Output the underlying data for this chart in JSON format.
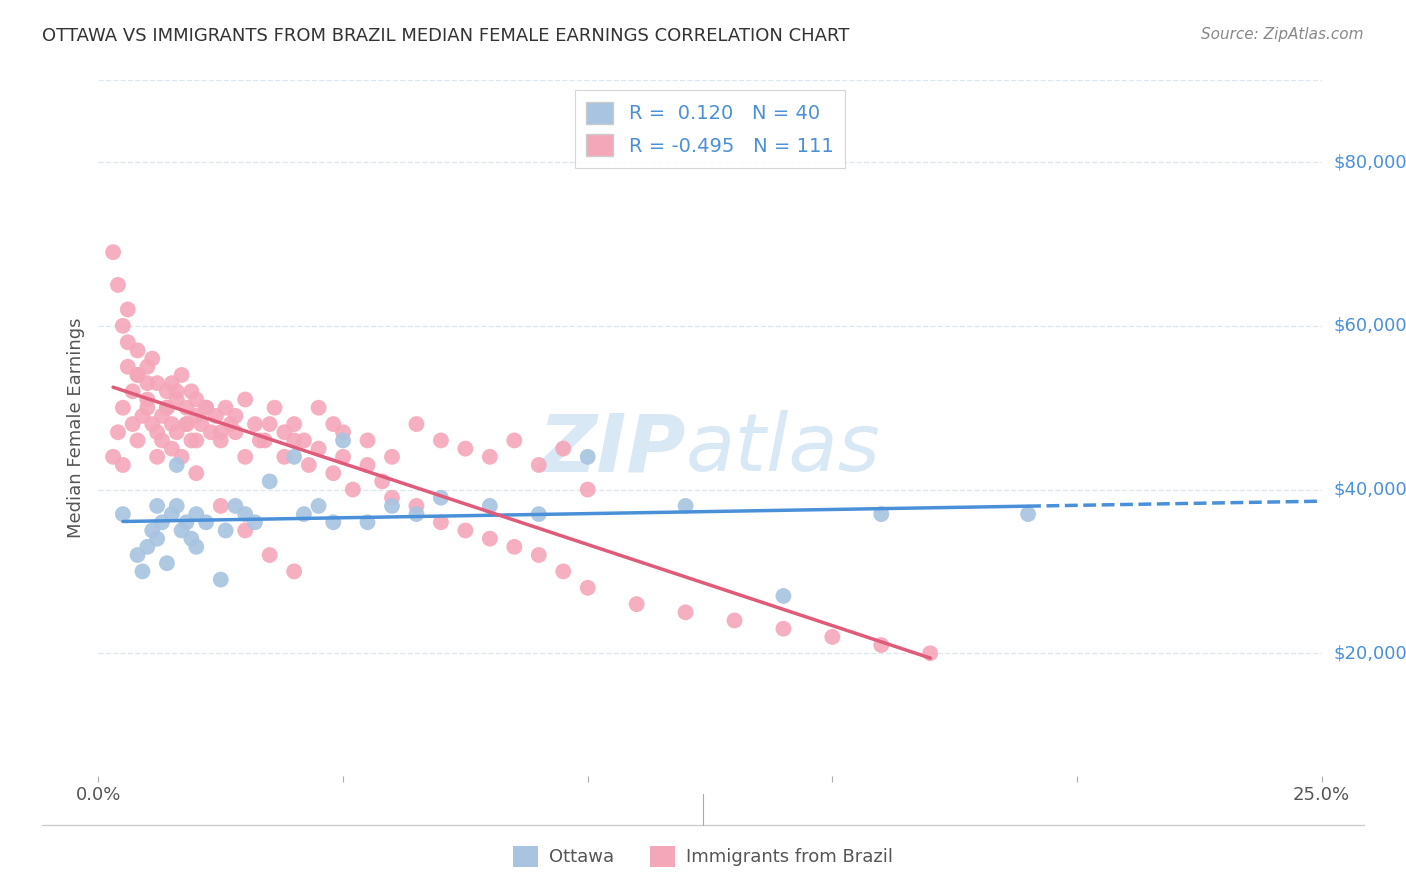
{
  "title": "OTTAWA VS IMMIGRANTS FROM BRAZIL MEDIAN FEMALE EARNINGS CORRELATION CHART",
  "source": "Source: ZipAtlas.com",
  "ylabel": "Median Female Earnings",
  "y_tick_labels": [
    "$20,000",
    "$40,000",
    "$60,000",
    "$80,000"
  ],
  "y_tick_values": [
    20000,
    40000,
    60000,
    80000
  ],
  "xlim": [
    0.0,
    0.25
  ],
  "ylim": [
    5000,
    90000
  ],
  "r_ottawa": 0.12,
  "n_ottawa": 40,
  "r_brazil": -0.495,
  "n_brazil": 111,
  "color_ottawa": "#a8c4e0",
  "color_brazil": "#f4a7b9",
  "color_line_ottawa": "#4a90d9",
  "color_line_brazil": "#e05a7a",
  "color_yticks": "#4a90d9",
  "watermark_color": "#c8dff0",
  "background_color": "#ffffff",
  "grid_color": "#dde8f0",
  "ottawa_x": [
    0.005,
    0.008,
    0.009,
    0.01,
    0.011,
    0.012,
    0.012,
    0.013,
    0.014,
    0.015,
    0.016,
    0.016,
    0.017,
    0.018,
    0.019,
    0.02,
    0.02,
    0.022,
    0.025,
    0.026,
    0.028,
    0.03,
    0.032,
    0.035,
    0.04,
    0.042,
    0.045,
    0.048,
    0.05,
    0.055,
    0.06,
    0.065,
    0.07,
    0.08,
    0.09,
    0.1,
    0.12,
    0.14,
    0.16,
    0.19
  ],
  "ottawa_y": [
    37000,
    32000,
    30000,
    33000,
    35000,
    38000,
    34000,
    36000,
    31000,
    37000,
    43000,
    38000,
    35000,
    36000,
    34000,
    37000,
    33000,
    36000,
    29000,
    35000,
    38000,
    37000,
    36000,
    41000,
    44000,
    37000,
    38000,
    36000,
    46000,
    36000,
    38000,
    37000,
    39000,
    38000,
    37000,
    44000,
    38000,
    27000,
    37000,
    37000
  ],
  "brazil_x": [
    0.003,
    0.004,
    0.005,
    0.005,
    0.006,
    0.007,
    0.007,
    0.008,
    0.008,
    0.009,
    0.01,
    0.01,
    0.011,
    0.011,
    0.012,
    0.012,
    0.013,
    0.013,
    0.014,
    0.014,
    0.015,
    0.015,
    0.016,
    0.016,
    0.017,
    0.017,
    0.018,
    0.018,
    0.019,
    0.019,
    0.02,
    0.02,
    0.021,
    0.022,
    0.023,
    0.024,
    0.025,
    0.026,
    0.027,
    0.028,
    0.03,
    0.032,
    0.034,
    0.036,
    0.038,
    0.04,
    0.042,
    0.045,
    0.048,
    0.05,
    0.055,
    0.06,
    0.065,
    0.07,
    0.075,
    0.08,
    0.085,
    0.09,
    0.095,
    0.1,
    0.005,
    0.006,
    0.008,
    0.01,
    0.012,
    0.014,
    0.016,
    0.018,
    0.02,
    0.022,
    0.025,
    0.028,
    0.03,
    0.033,
    0.035,
    0.038,
    0.04,
    0.043,
    0.045,
    0.048,
    0.05,
    0.052,
    0.055,
    0.058,
    0.06,
    0.065,
    0.07,
    0.075,
    0.08,
    0.085,
    0.09,
    0.095,
    0.1,
    0.11,
    0.12,
    0.13,
    0.14,
    0.15,
    0.16,
    0.17,
    0.003,
    0.004,
    0.006,
    0.008,
    0.01,
    0.015,
    0.02,
    0.025,
    0.03,
    0.035,
    0.04
  ],
  "brazil_y": [
    44000,
    47000,
    43000,
    50000,
    55000,
    48000,
    52000,
    46000,
    54000,
    49000,
    51000,
    53000,
    56000,
    48000,
    44000,
    47000,
    46000,
    49000,
    52000,
    50000,
    48000,
    53000,
    51000,
    47000,
    44000,
    54000,
    50000,
    48000,
    46000,
    52000,
    49000,
    51000,
    48000,
    50000,
    47000,
    49000,
    46000,
    50000,
    48000,
    47000,
    51000,
    48000,
    46000,
    50000,
    47000,
    48000,
    46000,
    50000,
    48000,
    47000,
    46000,
    44000,
    48000,
    46000,
    45000,
    44000,
    46000,
    43000,
    45000,
    40000,
    60000,
    62000,
    57000,
    55000,
    53000,
    50000,
    52000,
    48000,
    46000,
    50000,
    47000,
    49000,
    44000,
    46000,
    48000,
    44000,
    46000,
    43000,
    45000,
    42000,
    44000,
    40000,
    43000,
    41000,
    39000,
    38000,
    36000,
    35000,
    34000,
    33000,
    32000,
    30000,
    28000,
    26000,
    25000,
    24000,
    23000,
    22000,
    21000,
    20000,
    69000,
    65000,
    58000,
    54000,
    50000,
    45000,
    42000,
    38000,
    35000,
    32000,
    30000
  ]
}
